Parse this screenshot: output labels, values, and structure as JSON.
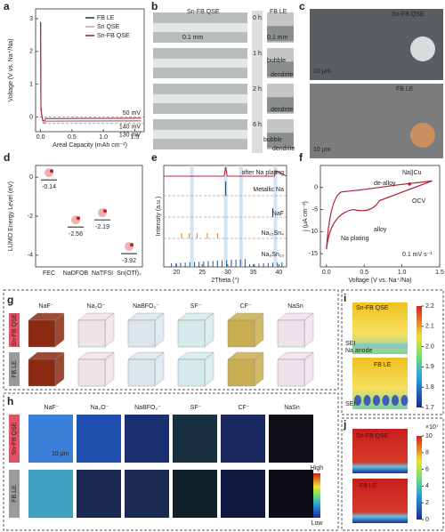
{
  "panel_labels": [
    "a",
    "b",
    "c",
    "d",
    "e",
    "f",
    "g",
    "h",
    "i",
    "j"
  ],
  "a": {
    "legend": [
      "FB LE",
      "Sn QSE",
      "Sn-FB QSE"
    ],
    "annotations": [
      "50 mV",
      "140 mV",
      "130 mV"
    ],
    "x_label": "Areal Capacity (mAh cm⁻²)",
    "y_label": "Voltage (V vs. Na⁺/Na)",
    "xlim": [
      -0.08,
      1.65
    ],
    "xticks": [
      {
        "value": 0,
        "label": "0.0"
      },
      0.5,
      {
        "value": 1,
        "label": "1.0"
      },
      1.5
    ],
    "ylim": [
      -0.45,
      3.3
    ],
    "yticks": [
      0,
      1,
      2,
      3
    ]
  },
  "b": {
    "headers": [
      "Sn-FB QSE",
      "FB LE"
    ],
    "times": [
      "0 h",
      "1 h",
      "2 h",
      "6 h"
    ],
    "scale_bars": [
      "0.1 mm",
      "0.1 mm"
    ],
    "annotations": [
      "bubble",
      "dendrite",
      "dendrite",
      "bubble",
      "dendrite"
    ]
  },
  "c": {
    "headers": [
      "Sn-FB QSE",
      "FB LE"
    ],
    "scale_bars": [
      "10 μm",
      "10 μm"
    ]
  },
  "d": {
    "y_label": "LUMO Energy Level (eV)",
    "categories": [
      "FEC",
      "NaDFOB",
      "NaTFSI",
      "Sn(OTf)₂"
    ],
    "values": [
      -0.14,
      -2.56,
      -2.19,
      -3.92
    ],
    "ylim": [
      -4.6,
      0.6
    ],
    "yticks": [
      0,
      -2,
      -4
    ]
  },
  "e": {
    "traces": [
      "after Na plating",
      "Metallic Na",
      "NaF",
      "Na₁₅Sn₄",
      "Na₉Sn₁₃"
    ],
    "x_label": "2Theta (°)",
    "y_label": "Intensity (a.u.)",
    "xlim": [
      17.5,
      41.5
    ],
    "xticks": [
      20,
      25,
      30,
      35,
      40
    ]
  },
  "f": {
    "title": "Na||Cu",
    "annotations": [
      "de-alloy",
      "OCV",
      "alloy",
      "Na plating"
    ],
    "scan_rate": "0.1 mV s⁻¹",
    "x_label": "Voltage (V vs. Na⁺/Na)",
    "y_label": "j (μA cm⁻²)",
    "xlim": [
      -0.08,
      1.5
    ],
    "xticks": [
      {
        "value": 0,
        "label": "0.0"
      },
      0.5,
      {
        "value": 1,
        "label": "1.0"
      },
      1.5
    ],
    "ylim": [
      -18,
      5
    ],
    "yticks": [
      0,
      -5,
      -10,
      -15
    ]
  },
  "g": {
    "columns": [
      "NaF⁻",
      "Na₂O⁻",
      "NaBFO₂⁻",
      "SF⁻",
      "CF⁻",
      "NaSn"
    ],
    "rows": [
      "Sn-FB QSE",
      "FB LE"
    ]
  },
  "h": {
    "columns": [
      "NaF⁻",
      "Na₂O⁻",
      "NaBFO₂⁻",
      "SF⁻",
      "CF⁻",
      "NaSn"
    ],
    "rows": [
      "Sn-FB QSE",
      "FB LE"
    ],
    "scale_bar": "10 μm",
    "colorbar": [
      "High",
      "Low"
    ]
  },
  "i": {
    "labels": [
      "Sn-FB QSE",
      "FB LE"
    ],
    "annotations": [
      "SEI",
      "Na anode",
      "SEI"
    ],
    "colorbar_ticks": [
      1.7,
      1.8,
      1.9,
      {
        "value": 2,
        "label": "2.0"
      },
      2.1,
      2.2
    ]
  },
  "j": {
    "labels": [
      "Sn-FB QSE",
      "FB LE"
    ],
    "colorbar_unit": "×10⁷",
    "colorbar_ticks": [
      0,
      2,
      4,
      6,
      8,
      10
    ]
  }
}
